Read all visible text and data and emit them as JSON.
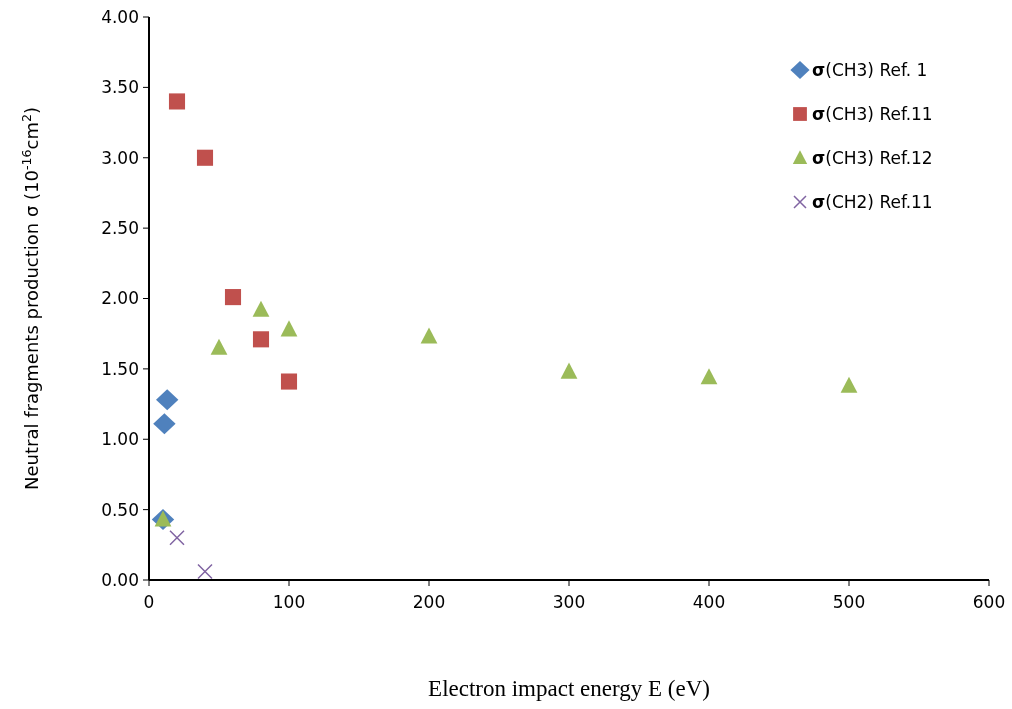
{
  "chart_data": {
    "type": "scatter",
    "xlabel": "Electron impact energy E (eV)",
    "ylabel": "Neutral fragments production σ (10$^{-16}$cm$^{2}$)",
    "xlim": [
      0,
      600
    ],
    "xticks": [
      0,
      100,
      200,
      300,
      400,
      500,
      600
    ],
    "ylim": [
      0,
      4
    ],
    "yticks": [
      {
        "value": 0,
        "label": "0.00"
      },
      {
        "value": 0.5,
        "label": "0.50"
      },
      {
        "value": 1,
        "label": "1.00"
      },
      {
        "value": 1.5,
        "label": "1.50"
      },
      {
        "value": 2,
        "label": "2.00"
      },
      {
        "value": 2.5,
        "label": "2.50"
      },
      {
        "value": 3,
        "label": "3.00"
      },
      {
        "value": 3.5,
        "label": "3.50"
      },
      {
        "value": 4,
        "label": "4.00"
      }
    ],
    "grid": false,
    "legend": "top right",
    "series": [
      {
        "name": "σ(CH3) Ref. 1",
        "color": "#4f81bd",
        "marker": "diamond",
        "x": [
          13,
          11,
          10
        ],
        "values": [
          1.28,
          1.11,
          0.43
        ]
      },
      {
        "name": "σ(CH3) Ref.11",
        "color": "#c0504d",
        "marker": "square",
        "x": [
          20,
          40,
          60,
          80,
          100
        ],
        "values": [
          3.4,
          3.0,
          2.01,
          1.71,
          1.41
        ]
      },
      {
        "name": "σ(CH3) Ref.12",
        "color": "#9bbb59",
        "marker": "triangle",
        "x": [
          10,
          50,
          80,
          100,
          200,
          300,
          400,
          500
        ],
        "values": [
          0.43,
          1.65,
          1.92,
          1.78,
          1.73,
          1.48,
          1.44,
          1.38
        ]
      },
      {
        "name": "σ(CH2) Ref.11",
        "color": "#8064a2",
        "marker": "cross",
        "x": [
          20,
          40
        ],
        "values": [
          0.3,
          0.06
        ]
      }
    ]
  }
}
